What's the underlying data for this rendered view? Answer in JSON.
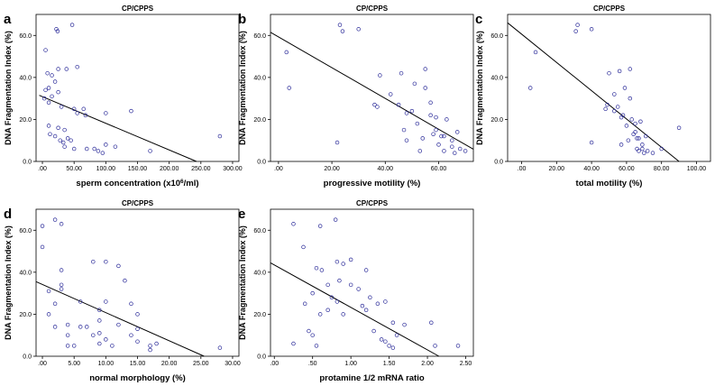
{
  "chart_data": [
    {
      "panel": "a",
      "type": "scatter",
      "title": "CP/CPPS",
      "xlabel": "sperm concentration (x10",
      "xlabel_sup": "6",
      "xlabel_tail": "/ml)",
      "ylabel": "DNA Fragmentation Index (%)",
      "xlim": [
        -10,
        310
      ],
      "ylim": [
        0,
        70
      ],
      "xticks": [
        0,
        50,
        100,
        150,
        200,
        250,
        300
      ],
      "xtick_labels": [
        ".00",
        "50.00",
        "100.00",
        "150.00",
        "200.00",
        "250.00",
        "300.00"
      ],
      "yticks": [
        0,
        20,
        40,
        60
      ],
      "ytick_labels": [
        "0.0",
        "20.0",
        "40.0",
        "60.0"
      ],
      "points": [
        [
          22,
          63
        ],
        [
          24,
          62
        ],
        [
          47,
          65
        ],
        [
          5,
          53
        ],
        [
          8,
          42
        ],
        [
          15,
          41
        ],
        [
          25,
          44
        ],
        [
          20,
          38
        ],
        [
          38,
          44
        ],
        [
          55,
          45
        ],
        [
          10,
          35
        ],
        [
          5,
          34
        ],
        [
          25,
          33
        ],
        [
          15,
          31
        ],
        [
          10,
          28
        ],
        [
          3,
          30
        ],
        [
          30,
          26
        ],
        [
          50,
          25
        ],
        [
          55,
          23
        ],
        [
          65,
          25
        ],
        [
          68,
          22
        ],
        [
          100,
          23
        ],
        [
          140,
          24
        ],
        [
          10,
          17
        ],
        [
          25,
          16
        ],
        [
          35,
          15
        ],
        [
          12,
          13
        ],
        [
          20,
          12
        ],
        [
          40,
          11
        ],
        [
          28,
          10
        ],
        [
          33,
          9
        ],
        [
          45,
          10
        ],
        [
          35,
          7
        ],
        [
          50,
          6
        ],
        [
          70,
          6
        ],
        [
          88,
          5
        ],
        [
          95,
          4
        ],
        [
          82,
          6
        ],
        [
          100,
          8
        ],
        [
          115,
          7
        ],
        [
          280,
          12
        ],
        [
          170,
          5
        ]
      ],
      "fit_line": [
        [
          -5,
          31.5
        ],
        [
          243,
          0
        ]
      ]
    },
    {
      "panel": "b",
      "type": "scatter",
      "title": "CP/CPPS",
      "xlabel": "progressive motility  (%)",
      "ylabel": "DNA Fragmentation Index (%)",
      "xlim": [
        -3,
        73
      ],
      "ylim": [
        0,
        70
      ],
      "xticks": [
        0,
        20,
        40,
        60
      ],
      "xtick_labels": [
        ".00",
        "20.00",
        "40.00",
        "60.00"
      ],
      "yticks": [
        0,
        20,
        40,
        60
      ],
      "ytick_labels": [
        "0.0",
        "20.0",
        "40.0",
        "60.0"
      ],
      "points": [
        [
          23,
          65
        ],
        [
          24,
          62
        ],
        [
          30,
          63
        ],
        [
          3,
          52
        ],
        [
          4,
          35
        ],
        [
          22,
          9
        ],
        [
          36,
          27
        ],
        [
          37,
          26
        ],
        [
          38,
          41
        ],
        [
          42,
          32
        ],
        [
          45,
          27
        ],
        [
          46,
          42
        ],
        [
          48,
          23
        ],
        [
          48,
          10
        ],
        [
          50,
          24
        ],
        [
          51,
          37
        ],
        [
          52,
          18
        ],
        [
          54,
          11
        ],
        [
          55,
          44
        ],
        [
          55,
          35
        ],
        [
          57,
          22
        ],
        [
          58,
          13
        ],
        [
          59,
          21
        ],
        [
          59,
          15
        ],
        [
          60,
          8
        ],
        [
          61,
          12
        ],
        [
          62,
          12
        ],
        [
          62,
          5
        ],
        [
          63,
          20
        ],
        [
          65,
          10
        ],
        [
          65,
          7
        ],
        [
          66,
          4
        ],
        [
          67,
          14
        ],
        [
          68,
          6
        ],
        [
          70,
          5
        ],
        [
          57,
          28
        ],
        [
          53,
          5
        ],
        [
          47,
          15
        ]
      ],
      "fit_line": [
        [
          -3,
          61.5
        ],
        [
          73,
          5.8
        ]
      ]
    },
    {
      "panel": "c",
      "type": "scatter",
      "title": "CP/CPPS",
      "xlabel": "total motility  (%)",
      "ylabel": "DNA Fragmentation Index (%)",
      "xlim": [
        -8,
        108
      ],
      "ylim": [
        0,
        70
      ],
      "xticks": [
        0,
        20,
        40,
        60,
        80,
        100
      ],
      "xtick_labels": [
        ".00",
        "20.00",
        "40.00",
        "60.00",
        "80.00",
        "100.00"
      ],
      "yticks": [
        0,
        20,
        40,
        60
      ],
      "ytick_labels": [
        "0.0",
        "20.0",
        "40.0",
        "60.0"
      ],
      "points": [
        [
          32,
          65
        ],
        [
          31,
          62
        ],
        [
          40,
          63
        ],
        [
          8,
          52
        ],
        [
          5,
          35
        ],
        [
          40,
          9
        ],
        [
          48,
          25
        ],
        [
          49,
          27
        ],
        [
          50,
          42
        ],
        [
          53,
          32
        ],
        [
          55,
          26
        ],
        [
          56,
          43
        ],
        [
          57,
          21
        ],
        [
          57,
          8
        ],
        [
          58,
          22
        ],
        [
          59,
          35
        ],
        [
          60,
          17
        ],
        [
          61,
          10
        ],
        [
          62,
          44
        ],
        [
          62,
          30
        ],
        [
          63,
          20
        ],
        [
          64,
          13
        ],
        [
          65,
          18
        ],
        [
          65,
          14
        ],
        [
          66,
          6
        ],
        [
          66,
          11
        ],
        [
          67,
          11
        ],
        [
          67,
          5
        ],
        [
          68,
          19
        ],
        [
          69,
          8
        ],
        [
          69,
          6
        ],
        [
          70,
          4
        ],
        [
          71,
          12
        ],
        [
          72,
          5
        ],
        [
          75,
          4
        ],
        [
          80,
          6
        ],
        [
          90,
          16
        ],
        [
          53,
          24
        ]
      ],
      "fit_line": [
        [
          -8,
          66
        ],
        [
          90,
          0
        ]
      ]
    },
    {
      "panel": "d",
      "type": "scatter",
      "title": "CP/CPPS",
      "xlabel": "normal morphology  (%)",
      "ylabel": "DNA Fragmentation Index (%)",
      "xlim": [
        -1,
        31
      ],
      "ylim": [
        0,
        70
      ],
      "xticks": [
        0,
        5,
        10,
        15,
        20,
        25,
        30
      ],
      "xtick_labels": [
        ".00",
        "5.00",
        "10.00",
        "15.00",
        "20.00",
        "25.00",
        "30.00"
      ],
      "yticks": [
        0,
        20,
        40,
        60
      ],
      "ytick_labels": [
        "0.0",
        "20.0",
        "40.0",
        "60.0"
      ],
      "points": [
        [
          0,
          62
        ],
        [
          2,
          65
        ],
        [
          3,
          63
        ],
        [
          0,
          52
        ],
        [
          1,
          31
        ],
        [
          2,
          25
        ],
        [
          1,
          20
        ],
        [
          2,
          14
        ],
        [
          3,
          41
        ],
        [
          3,
          34
        ],
        [
          3,
          32
        ],
        [
          4,
          15
        ],
        [
          4,
          10
        ],
        [
          4,
          5
        ],
        [
          5,
          5
        ],
        [
          6,
          26
        ],
        [
          6,
          14
        ],
        [
          7,
          14
        ],
        [
          8,
          10
        ],
        [
          8,
          45
        ],
        [
          9,
          22
        ],
        [
          9,
          17
        ],
        [
          9,
          11
        ],
        [
          9,
          6
        ],
        [
          10,
          45
        ],
        [
          10,
          26
        ],
        [
          10,
          8
        ],
        [
          11,
          5
        ],
        [
          12,
          43
        ],
        [
          12,
          15
        ],
        [
          13,
          36
        ],
        [
          14,
          25
        ],
        [
          14,
          10
        ],
        [
          15,
          20
        ],
        [
          15,
          13
        ],
        [
          15,
          7
        ],
        [
          17,
          5
        ],
        [
          17,
          3
        ],
        [
          18,
          6
        ],
        [
          28,
          4
        ]
      ],
      "fit_line": [
        [
          -1,
          35.5
        ],
        [
          25.5,
          0
        ]
      ]
    },
    {
      "panel": "e",
      "type": "scatter",
      "title": "CP/CPPS",
      "xlabel": "protamine 1/2  mRNA ratio",
      "ylabel": "DNA Fragmentation Index (%)",
      "xlim": [
        -0.05,
        2.6
      ],
      "ylim": [
        0,
        70
      ],
      "xticks": [
        0,
        0.5,
        1,
        1.5,
        2,
        2.5
      ],
      "xtick_labels": [
        ".00",
        ".50",
        "1.00",
        "1.50",
        "2.00",
        "2.50"
      ],
      "yticks": [
        0,
        20,
        40,
        60
      ],
      "ytick_labels": [
        "0.0",
        "20.0",
        "40.0",
        "60.0"
      ],
      "points": [
        [
          0.25,
          63
        ],
        [
          0.6,
          62
        ],
        [
          0.8,
          65
        ],
        [
          0.38,
          52
        ],
        [
          0.55,
          42
        ],
        [
          0.62,
          41
        ],
        [
          0.82,
          45
        ],
        [
          0.9,
          44
        ],
        [
          1.0,
          46
        ],
        [
          1.2,
          41
        ],
        [
          0.85,
          36
        ],
        [
          0.7,
          34
        ],
        [
          1.0,
          34
        ],
        [
          0.5,
          30
        ],
        [
          0.75,
          28
        ],
        [
          0.82,
          26
        ],
        [
          0.4,
          25
        ],
        [
          1.1,
          32
        ],
        [
          1.25,
          28
        ],
        [
          1.35,
          25
        ],
        [
          1.45,
          26
        ],
        [
          1.55,
          16
        ],
        [
          0.45,
          12
        ],
        [
          0.5,
          10
        ],
        [
          0.55,
          5
        ],
        [
          0.25,
          6
        ],
        [
          0.6,
          20
        ],
        [
          0.9,
          20
        ],
        [
          1.15,
          24
        ],
        [
          1.2,
          22
        ],
        [
          1.3,
          12
        ],
        [
          1.4,
          8
        ],
        [
          1.45,
          7
        ],
        [
          1.5,
          5
        ],
        [
          1.55,
          4
        ],
        [
          1.6,
          10
        ],
        [
          1.7,
          15
        ],
        [
          2.05,
          16
        ],
        [
          2.1,
          5
        ],
        [
          2.4,
          5
        ],
        [
          0.7,
          22
        ]
      ],
      "fit_line": [
        [
          -0.05,
          44.5
        ],
        [
          2.15,
          0
        ]
      ]
    }
  ]
}
